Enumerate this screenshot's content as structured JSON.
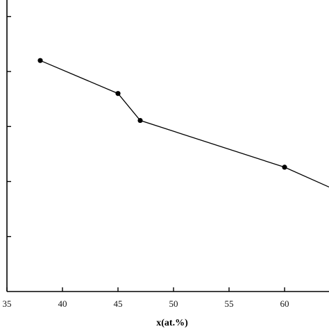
{
  "chart_data": {
    "type": "line",
    "title": "",
    "xlabel": "x(at.%)",
    "ylabel": "",
    "xlim": [
      35,
      64
    ],
    "ylim": [
      0,
      5.3
    ],
    "x_ticks": [
      35,
      40,
      45,
      50,
      55,
      60
    ],
    "x_tick_labels": [
      "35",
      "40",
      "45",
      "50",
      "55",
      "60"
    ],
    "y_ticks": [
      1,
      2,
      3,
      4,
      5
    ],
    "grid": false,
    "series": [
      {
        "x": [
          38,
          45,
          47,
          60,
          64
        ],
        "y": [
          4.2,
          3.6,
          3.11,
          2.26,
          1.9
        ],
        "markers": [
          true,
          true,
          true,
          true,
          false
        ]
      }
    ]
  }
}
